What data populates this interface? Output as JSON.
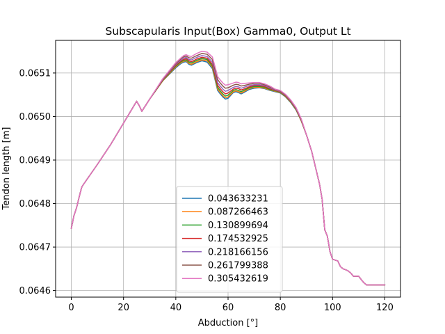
{
  "chart_data": {
    "type": "line",
    "title": "Subscapularis Input(Box) Gamma0, Output Lt",
    "xlabel": "Abduction [°]",
    "ylabel": "Tendon length [m]",
    "xlim": [
      -6,
      126
    ],
    "ylim": [
      0.064585,
      0.065175
    ],
    "xticks": [
      0,
      20,
      40,
      60,
      80,
      100,
      120
    ],
    "yticks": [
      0.0646,
      0.0647,
      0.0648,
      0.0649,
      0.065,
      0.0651
    ],
    "ytick_labels": [
      "0.0646",
      "0.0647",
      "0.0648",
      "0.0649",
      "0.0650",
      "0.0651"
    ],
    "grid": true,
    "legend_position": "lower center",
    "x": [
      0,
      1,
      2,
      3,
      4,
      5,
      10,
      15,
      20,
      25,
      26,
      27,
      30,
      35,
      40,
      42,
      43,
      44,
      45,
      46,
      48,
      50,
      52,
      54,
      55,
      56,
      57,
      58,
      59,
      60,
      62,
      63,
      64,
      65,
      66,
      68,
      70,
      72,
      74,
      76,
      78,
      80,
      82,
      84,
      86,
      88,
      90,
      92,
      94,
      95,
      96,
      97,
      98,
      99,
      100,
      101,
      102,
      103,
      104,
      105,
      106,
      107,
      108,
      109,
      110,
      111,
      112,
      113,
      114,
      115,
      116,
      117,
      118,
      119,
      120
    ],
    "series": [
      {
        "name": "0.043633231",
        "color": "#1f77b4",
        "values": [
          0.064743,
          0.064772,
          0.06479,
          0.064815,
          0.064838,
          0.064847,
          0.06489,
          0.064935,
          0.064985,
          0.065035,
          0.065025,
          0.065012,
          0.06504,
          0.065082,
          0.065112,
          0.065122,
          0.065125,
          0.065126,
          0.06512,
          0.065118,
          0.065124,
          0.065128,
          0.065125,
          0.06511,
          0.065085,
          0.06506,
          0.065052,
          0.065045,
          0.06504,
          0.065042,
          0.065055,
          0.065057,
          0.065055,
          0.065052,
          0.065055,
          0.065062,
          0.065065,
          0.065066,
          0.065064,
          0.06506,
          0.065057,
          0.065054,
          0.065045,
          0.065032,
          0.065015,
          0.06499,
          0.064958,
          0.06492,
          0.06487,
          0.064845,
          0.06481,
          0.06474,
          0.064725,
          0.06469,
          0.064672,
          0.06467,
          0.064668,
          0.064655,
          0.06465,
          0.064648,
          0.064645,
          0.06464,
          0.064633,
          0.064633,
          0.064633,
          0.064625,
          0.064618,
          0.064613,
          0.064613,
          0.064613,
          0.064613,
          0.064613,
          0.064613,
          0.064613,
          0.064613
        ]
      },
      {
        "name": "0.087266463",
        "color": "#ff7f0e",
        "values": [
          0.064743,
          0.064772,
          0.06479,
          0.064815,
          0.064838,
          0.064847,
          0.06489,
          0.064935,
          0.064985,
          0.065035,
          0.065025,
          0.065012,
          0.06504,
          0.065082,
          0.065114,
          0.065124,
          0.065127,
          0.065128,
          0.065122,
          0.06512,
          0.065126,
          0.06513,
          0.065128,
          0.065113,
          0.065088,
          0.065063,
          0.065055,
          0.065048,
          0.065043,
          0.065045,
          0.065057,
          0.065059,
          0.065057,
          0.065054,
          0.065057,
          0.065064,
          0.065067,
          0.065067,
          0.065065,
          0.065061,
          0.065058,
          0.065055,
          0.065046,
          0.065033,
          0.065016,
          0.06499,
          0.064958,
          0.06492,
          0.06487,
          0.064845,
          0.06481,
          0.06474,
          0.064725,
          0.06469,
          0.064672,
          0.06467,
          0.064668,
          0.064655,
          0.06465,
          0.064648,
          0.064645,
          0.06464,
          0.064633,
          0.064633,
          0.064633,
          0.064625,
          0.064618,
          0.064613,
          0.064613,
          0.064613,
          0.064613,
          0.064613,
          0.064613,
          0.064613,
          0.064613
        ]
      },
      {
        "name": "0.130899694",
        "color": "#2ca02c",
        "values": [
          0.064743,
          0.064772,
          0.06479,
          0.064815,
          0.064838,
          0.064847,
          0.06489,
          0.064935,
          0.064985,
          0.065035,
          0.065025,
          0.065012,
          0.06504,
          0.065083,
          0.065116,
          0.065126,
          0.065129,
          0.06513,
          0.065125,
          0.065123,
          0.065129,
          0.065133,
          0.065131,
          0.065116,
          0.065092,
          0.065067,
          0.065059,
          0.065052,
          0.065047,
          0.065049,
          0.06506,
          0.065062,
          0.06506,
          0.065057,
          0.06506,
          0.065066,
          0.065069,
          0.065069,
          0.065067,
          0.065062,
          0.065059,
          0.065056,
          0.065047,
          0.065034,
          0.065017,
          0.064991,
          0.064958,
          0.06492,
          0.06487,
          0.064845,
          0.06481,
          0.06474,
          0.064725,
          0.06469,
          0.064672,
          0.06467,
          0.064668,
          0.064655,
          0.06465,
          0.064648,
          0.064645,
          0.06464,
          0.064633,
          0.064633,
          0.064633,
          0.064625,
          0.064618,
          0.064613,
          0.064613,
          0.064613,
          0.064613,
          0.064613,
          0.064613,
          0.064613,
          0.064613
        ]
      },
      {
        "name": "0.174532925",
        "color": "#d62728",
        "values": [
          0.064743,
          0.064772,
          0.06479,
          0.064815,
          0.064838,
          0.064847,
          0.06489,
          0.064935,
          0.064985,
          0.065035,
          0.065025,
          0.065012,
          0.06504,
          0.065084,
          0.065118,
          0.065128,
          0.065131,
          0.065133,
          0.065128,
          0.065126,
          0.065132,
          0.065136,
          0.065134,
          0.06512,
          0.065096,
          0.065072,
          0.065064,
          0.065057,
          0.065052,
          0.065054,
          0.065063,
          0.065065,
          0.065064,
          0.065061,
          0.065063,
          0.065068,
          0.065071,
          0.065071,
          0.065069,
          0.065064,
          0.06506,
          0.065057,
          0.065048,
          0.065035,
          0.065018,
          0.064992,
          0.064958,
          0.06492,
          0.06487,
          0.064845,
          0.06481,
          0.06474,
          0.064725,
          0.06469,
          0.064672,
          0.06467,
          0.064668,
          0.064655,
          0.06465,
          0.064648,
          0.064645,
          0.06464,
          0.064633,
          0.064633,
          0.064633,
          0.064625,
          0.064618,
          0.064613,
          0.064613,
          0.064613,
          0.064613,
          0.064613,
          0.064613,
          0.064613,
          0.064613
        ]
      },
      {
        "name": "0.218166156",
        "color": "#9467bd",
        "values": [
          0.064743,
          0.064772,
          0.06479,
          0.064815,
          0.064838,
          0.064847,
          0.06489,
          0.064935,
          0.064985,
          0.065035,
          0.065025,
          0.065012,
          0.06504,
          0.065085,
          0.06512,
          0.06513,
          0.065134,
          0.065136,
          0.065131,
          0.06513,
          0.065136,
          0.06514,
          0.065138,
          0.065125,
          0.065102,
          0.065078,
          0.06507,
          0.065063,
          0.065058,
          0.06506,
          0.065067,
          0.065069,
          0.065068,
          0.065065,
          0.065067,
          0.065071,
          0.065073,
          0.065073,
          0.065071,
          0.065066,
          0.065061,
          0.065058,
          0.065049,
          0.065036,
          0.065019,
          0.064993,
          0.064958,
          0.06492,
          0.06487,
          0.064845,
          0.06481,
          0.06474,
          0.064725,
          0.06469,
          0.064672,
          0.06467,
          0.064668,
          0.064655,
          0.06465,
          0.064648,
          0.064645,
          0.06464,
          0.064633,
          0.064633,
          0.064633,
          0.064625,
          0.064618,
          0.064613,
          0.064613,
          0.064613,
          0.064613,
          0.064613,
          0.064613,
          0.064613,
          0.064613
        ]
      },
      {
        "name": "0.261799388",
        "color": "#8c564b",
        "values": [
          0.064743,
          0.064772,
          0.06479,
          0.064815,
          0.064838,
          0.064847,
          0.06489,
          0.064935,
          0.064985,
          0.065035,
          0.065025,
          0.065012,
          0.06504,
          0.065086,
          0.065122,
          0.065133,
          0.065137,
          0.065139,
          0.065135,
          0.065134,
          0.06514,
          0.065145,
          0.065143,
          0.065131,
          0.065108,
          0.065085,
          0.065077,
          0.06507,
          0.065065,
          0.065066,
          0.065072,
          0.065074,
          0.065073,
          0.06507,
          0.065071,
          0.065074,
          0.065076,
          0.065076,
          0.065073,
          0.065068,
          0.065062,
          0.065059,
          0.06505,
          0.065037,
          0.06502,
          0.064994,
          0.064958,
          0.06492,
          0.06487,
          0.064845,
          0.06481,
          0.06474,
          0.064725,
          0.06469,
          0.064672,
          0.06467,
          0.064668,
          0.064655,
          0.06465,
          0.064648,
          0.064645,
          0.06464,
          0.064633,
          0.064633,
          0.064633,
          0.064625,
          0.064618,
          0.064613,
          0.064613,
          0.064613,
          0.064613,
          0.064613,
          0.064613,
          0.064613,
          0.064613
        ]
      },
      {
        "name": "0.305432619",
        "color": "#e377c2",
        "values": [
          0.064743,
          0.064772,
          0.06479,
          0.064815,
          0.064838,
          0.064847,
          0.06489,
          0.064935,
          0.064985,
          0.065035,
          0.065025,
          0.065012,
          0.06504,
          0.065087,
          0.065124,
          0.065135,
          0.06514,
          0.065142,
          0.065139,
          0.065138,
          0.065145,
          0.06515,
          0.065148,
          0.065137,
          0.065115,
          0.065092,
          0.065084,
          0.065077,
          0.065072,
          0.065073,
          0.065077,
          0.065079,
          0.065078,
          0.065075,
          0.065076,
          0.065077,
          0.065078,
          0.065078,
          0.065075,
          0.06507,
          0.065063,
          0.06506,
          0.065051,
          0.065038,
          0.065021,
          0.064995,
          0.064958,
          0.06492,
          0.06487,
          0.064845,
          0.06481,
          0.06474,
          0.064725,
          0.06469,
          0.064672,
          0.06467,
          0.064668,
          0.064655,
          0.06465,
          0.064648,
          0.064645,
          0.06464,
          0.064633,
          0.064633,
          0.064633,
          0.064625,
          0.064618,
          0.064613,
          0.064613,
          0.064613,
          0.064613,
          0.064613,
          0.064613,
          0.064613,
          0.064613
        ]
      }
    ]
  }
}
